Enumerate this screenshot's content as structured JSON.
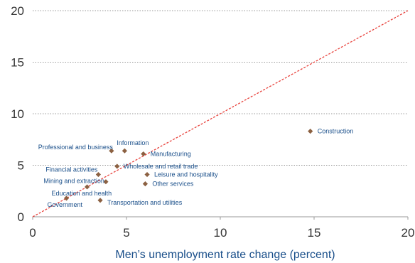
{
  "chart_data": {
    "type": "scatter",
    "title": "",
    "xlabel": "Men’s unemployment rate change (percent)",
    "ylabel": "",
    "xlim": [
      0,
      20
    ],
    "ylim": [
      0,
      20
    ],
    "x_ticks": [
      "0",
      "5",
      "10",
      "15",
      "20"
    ],
    "y_ticks": [
      "0",
      "5",
      "10",
      "15",
      "20"
    ],
    "grid": "horizontal dotted",
    "reference_line": {
      "type": "diagonal",
      "style": "dashed",
      "color": "#e8413b"
    },
    "marker_color": "#8c6142",
    "label_color": "#1a4f8a",
    "points": [
      {
        "label": "Construction",
        "x": 14.8,
        "y": 8.3
      },
      {
        "label": "Information",
        "x": 4.9,
        "y": 6.4
      },
      {
        "label": "Professional and business",
        "x": 4.2,
        "y": 6.4
      },
      {
        "label": "Manufacturing",
        "x": 5.9,
        "y": 6.1
      },
      {
        "label": "Wholesale and retail trade",
        "x": 4.5,
        "y": 4.9
      },
      {
        "label": "Financial activities",
        "x": 3.5,
        "y": 4.1
      },
      {
        "label": "Leisure and hospitality",
        "x": 6.1,
        "y": 4.1
      },
      {
        "label": "Mining and extraction",
        "x": 3.9,
        "y": 3.4
      },
      {
        "label": "Other services",
        "x": 6.0,
        "y": 3.2
      },
      {
        "label": "Education and health",
        "x": 2.9,
        "y": 2.9
      },
      {
        "label": "Government",
        "x": 1.8,
        "y": 1.8
      },
      {
        "label": "Transportation and utilities",
        "x": 3.6,
        "y": 1.6
      }
    ]
  }
}
